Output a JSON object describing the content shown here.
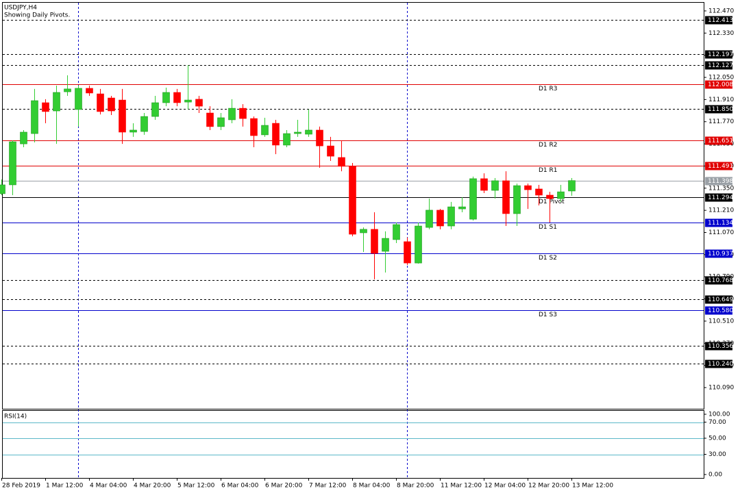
{
  "chart_data": {
    "type": "candlestick",
    "title": "USDJPY,H4",
    "subtitle": "Showing Daily Pivots.",
    "categories": [
      "28 Feb 2019",
      null,
      null,
      null,
      "1 Mar 12:00",
      null,
      null,
      null,
      "4 Mar 04:00",
      null,
      null,
      null,
      "4 Mar 20:00",
      null,
      null,
      null,
      "5 Mar 12:00",
      null,
      null,
      null,
      "6 Mar 04:00",
      null,
      null,
      null,
      "6 Mar 20:00",
      null,
      null,
      null,
      "7 Mar 12:00",
      null,
      null,
      null,
      "8 Mar 04:00",
      null,
      null,
      null,
      "8 Mar 20:00",
      null,
      null,
      null,
      "11 Mar 12:00",
      null,
      null,
      null,
      "12 Mar 04:00",
      null,
      null,
      null,
      "12 Mar 20:00",
      null,
      null,
      null,
      "13 Mar 12:00"
    ],
    "open": [
      111.315,
      111.371,
      111.63,
      111.695,
      111.89,
      111.838,
      111.959,
      111.847,
      111.981,
      111.946,
      111.92,
      111.907,
      111.704,
      111.708,
      111.803,
      111.89,
      111.955,
      111.894,
      111.912,
      111.825,
      111.739,
      111.782,
      111.855,
      111.79,
      111.687,
      111.76,
      111.622,
      111.695,
      111.691,
      111.717,
      111.617,
      111.544,
      111.488,
      111.068,
      111.09,
      110.951,
      111.025,
      111.012,
      110.877,
      111.102,
      111.211,
      111.111,
      111.219,
      111.154,
      111.41,
      111.336,
      111.397,
      111.189,
      111.366,
      111.345,
      111.306,
      111.284,
      111.332
    ],
    "high": [
      111.405,
      111.652,
      111.717,
      111.977,
      111.912,
      111.998,
      112.063,
      111.998,
      111.998,
      111.977,
      111.933,
      111.977,
      111.76,
      111.825,
      111.933,
      111.985,
      111.977,
      112.128,
      111.933,
      111.868,
      111.825,
      111.912,
      111.881,
      111.803,
      111.795,
      111.782,
      111.717,
      111.782,
      111.847,
      111.739,
      111.674,
      111.652,
      111.509,
      111.102,
      111.198,
      111.077,
      111.133,
      111.038,
      111.133,
      111.284,
      111.219,
      111.263,
      111.293,
      111.423,
      111.444,
      111.414,
      111.457,
      111.379,
      111.379,
      111.371,
      111.327,
      111.371,
      111.414
    ],
    "low": [
      111.306,
      111.306,
      111.609,
      111.639,
      111.76,
      111.63,
      111.933,
      111.739,
      111.933,
      111.816,
      111.812,
      111.63,
      111.674,
      111.687,
      111.782,
      111.868,
      111.868,
      111.847,
      111.825,
      111.717,
      111.717,
      111.76,
      111.739,
      111.609,
      111.674,
      111.565,
      111.609,
      111.674,
      111.674,
      111.479,
      111.522,
      111.457,
      111.046,
      110.947,
      110.774,
      110.817,
      111.003,
      110.865,
      110.873,
      111.09,
      111.09,
      111.09,
      111.198,
      111.146,
      111.319,
      111.284,
      111.111,
      111.111,
      111.219,
      111.241,
      111.133,
      111.263,
      111.302
    ],
    "close": [
      111.371,
      111.643,
      111.704,
      111.903,
      111.834,
      111.955,
      111.977,
      111.981,
      111.951,
      111.834,
      111.838,
      111.704,
      111.717,
      111.803,
      111.89,
      111.955,
      111.89,
      111.907,
      111.868,
      111.739,
      111.795,
      111.855,
      111.79,
      111.682,
      111.747,
      111.622,
      111.695,
      111.704,
      111.717,
      111.617,
      111.552,
      111.488,
      111.059,
      111.09,
      110.938,
      111.033,
      111.12,
      110.877,
      111.111,
      111.211,
      111.111,
      111.232,
      111.232,
      111.41,
      111.336,
      111.397,
      111.189,
      111.366,
      111.34,
      111.306,
      111.284,
      111.327,
      111.398
    ],
    "up_color": "#32cd32",
    "down_color": "#ff0000",
    "ylim": [
      109.956,
      112.526
    ],
    "yticks": [
      {
        "value": 112.47,
        "label": "112.470"
      },
      {
        "value": 112.33,
        "label": "112.330"
      },
      {
        "value": 112.19,
        "label": "112.190"
      },
      {
        "value": 112.05,
        "label": "112.050"
      },
      {
        "value": 111.91,
        "label": "111.910"
      },
      {
        "value": 111.77,
        "label": "111.770"
      },
      {
        "value": 111.63,
        "label": "111.630"
      },
      {
        "value": 111.49,
        "label": "111.490"
      },
      {
        "value": 111.35,
        "label": "111.350"
      },
      {
        "value": 111.21,
        "label": "111.210"
      },
      {
        "value": 111.07,
        "label": "111.070"
      },
      {
        "value": 110.93,
        "label": "110.930"
      },
      {
        "value": 110.79,
        "label": "110.790"
      },
      {
        "value": 110.65,
        "label": "110.650"
      },
      {
        "value": 110.51,
        "label": "110.510"
      },
      {
        "value": 110.37,
        "label": "110.370"
      },
      {
        "value": 110.23,
        "label": "110.230"
      },
      {
        "value": 110.09,
        "label": "110.090"
      }
    ],
    "levels": [
      {
        "value": 112.413,
        "color": "#000000",
        "dashed": true
      },
      {
        "value": 112.197,
        "color": "#000000",
        "dashed": true
      },
      {
        "value": 112.127,
        "color": "#000000",
        "dashed": true
      },
      {
        "value": {
          "value": 111.85,
          "label": "111.850"
        },
        "color": "#000000",
        "dashed": true
      },
      {
        "value": 110.768,
        "color": "#000000",
        "dashed": true
      },
      {
        "value": 110.649,
        "color": "#000000",
        "dashed": true
      },
      {
        "value": 110.356,
        "color": "#000000",
        "dashed": true
      },
      {
        "value": {
          "value": 110.24,
          "label": "110.240"
        },
        "color": "#000000",
        "dashed": true
      },
      {
        "value": 111.398,
        "color": "#9aa0a6",
        "dashed": false
      }
    ],
    "pivots": [
      {
        "name": "D1 R3",
        "value": 112.008,
        "color": "#e00000"
      },
      {
        "name": "D1 R2",
        "value": 111.651,
        "color": "#e00000"
      },
      {
        "name": "D1 R1",
        "value": 111.491,
        "color": "#e00000"
      },
      {
        "name": "D1 Pivot",
        "value": 111.294,
        "color": "#000000"
      },
      {
        "name": "D1 S1",
        "value": 111.134,
        "color": "#0000cc"
      },
      {
        "name": "D1 S2",
        "value": 110.937,
        "color": "#0000cc"
      },
      {
        "name": "D1 S3",
        "value": {
          "value": 110.58,
          "label": "110.580"
        },
        "color": "#0000cc"
      }
    ],
    "rsi": {
      "title": "RSI(14)",
      "yticks": [
        {
          "value": 100,
          "label": "100.00"
        },
        {
          "value": 70,
          "label": "70.00"
        },
        {
          "value": 50,
          "label": "50.00"
        },
        {
          "value": 30,
          "label": "30.00"
        },
        {
          "value": 0,
          "label": "0.00"
        }
      ],
      "color": "#5bb8c8"
    }
  }
}
